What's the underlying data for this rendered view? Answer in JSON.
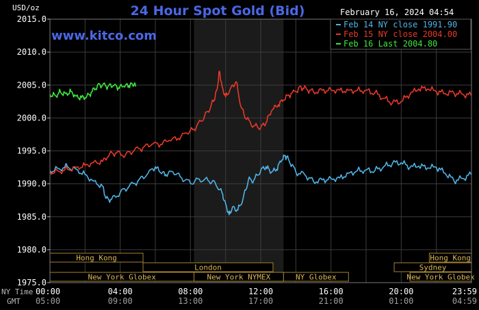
{
  "chart_data": {
    "type": "line",
    "title": "24 Hour Spot Gold (Bid)",
    "datetime": "February 16, 2024 04:54",
    "watermark": "www.kitco.com",
    "ylabel": "USD/oz",
    "ylim": [
      1975,
      2015
    ],
    "yticks": [
      "2015.0",
      "2010.0",
      "2005.0",
      "2000.0",
      "1995.0",
      "1990.0",
      "1985.0",
      "1980.0",
      "1975.0"
    ],
    "ytick_values": [
      2015,
      2010,
      2005,
      2000,
      1995,
      1990,
      1985,
      1980,
      1975
    ],
    "xlim": [
      0,
      24
    ],
    "xtick_hours": [
      0,
      4,
      8,
      12,
      16,
      20,
      23.983
    ],
    "xticks_ny": [
      "00:00",
      "04:00",
      "08:00",
      "12:00",
      "16:00",
      "20:00",
      "23:59"
    ],
    "xticks_gmt": [
      "05:00",
      "09:00",
      "13:00",
      "17:00",
      "21:00",
      "01:00",
      "04:59"
    ],
    "tz_labels": {
      "ny": "NY Time",
      "gmt": "GMT"
    },
    "grid": true,
    "legend_position": "top-right",
    "highlight_window_hours": [
      8.2,
      13.3
    ],
    "series": [
      {
        "name": "Feb 14 NY close 1991.90",
        "color": "#4fb4e6",
        "points": [
          [
            0,
            1992.0
          ],
          [
            0.5,
            1992.3
          ],
          [
            1.0,
            1992.6
          ],
          [
            1.5,
            1992.2
          ],
          [
            2.0,
            1991.4
          ],
          [
            2.5,
            1990.4
          ],
          [
            3.0,
            1989.6
          ],
          [
            3.2,
            1987.8
          ],
          [
            3.5,
            1987.6
          ],
          [
            4.0,
            1988.7
          ],
          [
            4.5,
            1989.6
          ],
          [
            5.0,
            1990.4
          ],
          [
            5.5,
            1991.3
          ],
          [
            6.0,
            1992.6
          ],
          [
            6.3,
            1991.7
          ],
          [
            6.6,
            1991.4
          ],
          [
            7.0,
            1991.8
          ],
          [
            7.5,
            1990.9
          ],
          [
            8.0,
            1990.1
          ],
          [
            8.5,
            1990.7
          ],
          [
            9.0,
            1990.5
          ],
          [
            9.4,
            1990.2
          ],
          [
            9.8,
            1988.6
          ],
          [
            10.0,
            1987.0
          ],
          [
            10.2,
            1985.3
          ],
          [
            10.4,
            1986.5
          ],
          [
            10.7,
            1986.0
          ],
          [
            11.0,
            1987.8
          ],
          [
            11.3,
            1990.6
          ],
          [
            11.6,
            1990.5
          ],
          [
            12.0,
            1992.0
          ],
          [
            12.3,
            1992.6
          ],
          [
            12.6,
            1991.7
          ],
          [
            12.9,
            1992.2
          ],
          [
            13.2,
            1993.6
          ],
          [
            13.4,
            1994.3
          ],
          [
            13.6,
            1993.6
          ],
          [
            14.0,
            1991.8
          ],
          [
            14.5,
            1991.4
          ],
          [
            15.0,
            1990.4
          ],
          [
            15.5,
            1990.6
          ],
          [
            16.0,
            1990.8
          ],
          [
            16.5,
            1990.9
          ],
          [
            17.0,
            1991.6
          ],
          [
            17.5,
            1992.0
          ],
          [
            18.0,
            1992.1
          ],
          [
            18.5,
            1992.0
          ],
          [
            19.0,
            1992.6
          ],
          [
            19.5,
            1993.1
          ],
          [
            20.0,
            1993.2
          ],
          [
            20.5,
            1992.5
          ],
          [
            21.0,
            1992.7
          ],
          [
            21.5,
            1992.4
          ],
          [
            22.0,
            1992.5
          ],
          [
            22.5,
            1991.6
          ],
          [
            23.0,
            1990.5
          ],
          [
            23.5,
            1990.8
          ],
          [
            23.983,
            1991.4
          ]
        ]
      },
      {
        "name": "Feb 15 NY close 2004.00",
        "color": "#e8392a",
        "points": [
          [
            0,
            1991.8
          ],
          [
            0.5,
            1991.9
          ],
          [
            1.0,
            1992.2
          ],
          [
            1.5,
            1992.5
          ],
          [
            2.0,
            1992.8
          ],
          [
            2.5,
            1993.3
          ],
          [
            3.0,
            1993.4
          ],
          [
            3.4,
            1994.6
          ],
          [
            3.8,
            1994.7
          ],
          [
            4.3,
            1994.4
          ],
          [
            4.8,
            1995.1
          ],
          [
            5.3,
            1995.5
          ],
          [
            5.8,
            1996.0
          ],
          [
            6.3,
            1996.0
          ],
          [
            6.8,
            1996.6
          ],
          [
            7.3,
            1996.9
          ],
          [
            7.8,
            1997.7
          ],
          [
            8.2,
            1998.3
          ],
          [
            8.6,
            1999.5
          ],
          [
            9.0,
            2001.0
          ],
          [
            9.3,
            2002.5
          ],
          [
            9.5,
            2004.2
          ],
          [
            9.65,
            2007.1
          ],
          [
            9.8,
            2004.8
          ],
          [
            10.0,
            2003.2
          ],
          [
            10.3,
            2004.6
          ],
          [
            10.6,
            2005.5
          ],
          [
            10.9,
            2001.5
          ],
          [
            11.2,
            1999.8
          ],
          [
            11.6,
            1998.8
          ],
          [
            12.0,
            1998.5
          ],
          [
            12.3,
            1999.3
          ],
          [
            12.6,
            2001.0
          ],
          [
            13.0,
            2002.0
          ],
          [
            13.3,
            2002.7
          ],
          [
            13.6,
            2003.5
          ],
          [
            14.0,
            2004.0
          ],
          [
            14.3,
            2004.7
          ],
          [
            14.6,
            2004.4
          ],
          [
            15.0,
            2004.0
          ],
          [
            15.5,
            2004.2
          ],
          [
            16.0,
            2004.3
          ],
          [
            16.5,
            2004.2
          ],
          [
            17.0,
            2004.2
          ],
          [
            17.5,
            2004.2
          ],
          [
            18.0,
            2004.2
          ],
          [
            18.5,
            2003.8
          ],
          [
            19.0,
            2003.0
          ],
          [
            19.5,
            2002.3
          ],
          [
            20.0,
            2002.5
          ],
          [
            20.5,
            2003.6
          ],
          [
            21.0,
            2004.4
          ],
          [
            21.5,
            2004.4
          ],
          [
            22.0,
            2004.0
          ],
          [
            22.5,
            2003.7
          ],
          [
            23.0,
            2003.8
          ],
          [
            23.5,
            2003.6
          ],
          [
            23.983,
            2003.4
          ]
        ]
      },
      {
        "name": "Feb 16 Last 2004.80",
        "color": "#3ee83e",
        "points": [
          [
            0,
            2003.6
          ],
          [
            0.3,
            2003.4
          ],
          [
            0.6,
            2003.9
          ],
          [
            0.9,
            2003.7
          ],
          [
            1.2,
            2004.0
          ],
          [
            1.5,
            2003.3
          ],
          [
            1.8,
            2003.1
          ],
          [
            2.1,
            2003.3
          ],
          [
            2.4,
            2004.0
          ],
          [
            2.7,
            2004.9
          ],
          [
            3.0,
            2005.0
          ],
          [
            3.3,
            2004.8
          ],
          [
            3.6,
            2004.9
          ],
          [
            3.9,
            2004.6
          ],
          [
            4.2,
            2004.8
          ],
          [
            4.5,
            2004.9
          ],
          [
            4.7,
            2005.1
          ],
          [
            4.9,
            2004.8
          ]
        ]
      }
    ],
    "session_bars": {
      "row1": [
        {
          "label": "Hong Kong",
          "start": 0,
          "end": 5.3
        },
        {
          "label": "Hong Kong",
          "start": 21.6,
          "end": 24
        }
      ],
      "row2": [
        {
          "label": "London",
          "start": 5.3,
          "end": 12.7
        },
        {
          "label": "Sydney",
          "start": 19.6,
          "end": 24
        }
      ],
      "row3": [
        {
          "label": "New York Globex",
          "start": 0,
          "end": 8.2
        },
        {
          "label": "New York NYMEX",
          "start": 8.2,
          "end": 13.3
        },
        {
          "label": "NY Globex",
          "start": 13.3,
          "end": 17.0
        },
        {
          "label": "New York Globex",
          "start": 20.5,
          "end": 24
        }
      ]
    }
  }
}
